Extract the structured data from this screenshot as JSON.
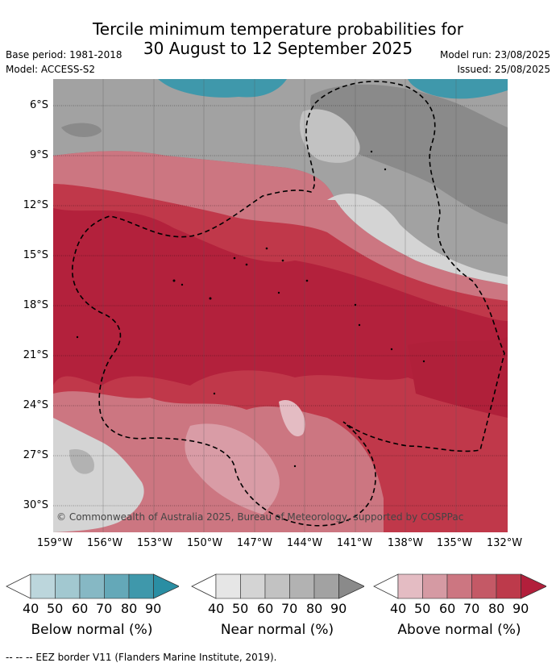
{
  "title_line1": "Tercile minimum temperature probabilities for",
  "title_line2": "30 August to 12 September 2025",
  "base_period": "Base period: 1981-2018",
  "model": "Model: ACCESS-S2",
  "model_run": "Model run: 23/08/2025",
  "issued": "Issued: 25/08/2025",
  "lat_labels": [
    "6°S",
    "9°S",
    "12°S",
    "15°S",
    "18°S",
    "21°S",
    "24°S",
    "27°S",
    "30°S"
  ],
  "lon_labels": [
    "159°W",
    "156°W",
    "153°W",
    "150°W",
    "147°W",
    "144°W",
    "141°W",
    "138°W",
    "135°W",
    "132°W"
  ],
  "copyright": "© Commonwealth of Australia 2025, Bureau of Meteorology, supported by COSPPac",
  "colorbars": [
    {
      "title": "Below normal (%)",
      "ticks": [
        "40",
        "50",
        "60",
        "70",
        "80",
        "90"
      ],
      "colors": [
        "#ffffff",
        "#bcd6dc",
        "#a2c8d0",
        "#86b8c4",
        "#64a8b8",
        "#3f98ab",
        "#2a8ea3"
      ]
    },
    {
      "title": "Near normal (%)",
      "ticks": [
        "40",
        "50",
        "60",
        "70",
        "80",
        "90"
      ],
      "colors": [
        "#ffffff",
        "#e6e6e6",
        "#d4d4d4",
        "#c2c2c2",
        "#b2b2b2",
        "#a2a2a2",
        "#8a8a8a"
      ]
    },
    {
      "title": "Above normal (%)",
      "ticks": [
        "40",
        "50",
        "60",
        "70",
        "80",
        "90"
      ],
      "colors": [
        "#ffffff",
        "#e4bcc3",
        "#d59aa3",
        "#cc7681",
        "#c45966",
        "#bd3a4b",
        "#b21f3b"
      ]
    }
  ],
  "footer": "-- -- -- EEZ border V11 (Flanders Marine Institute, 2019)."
}
